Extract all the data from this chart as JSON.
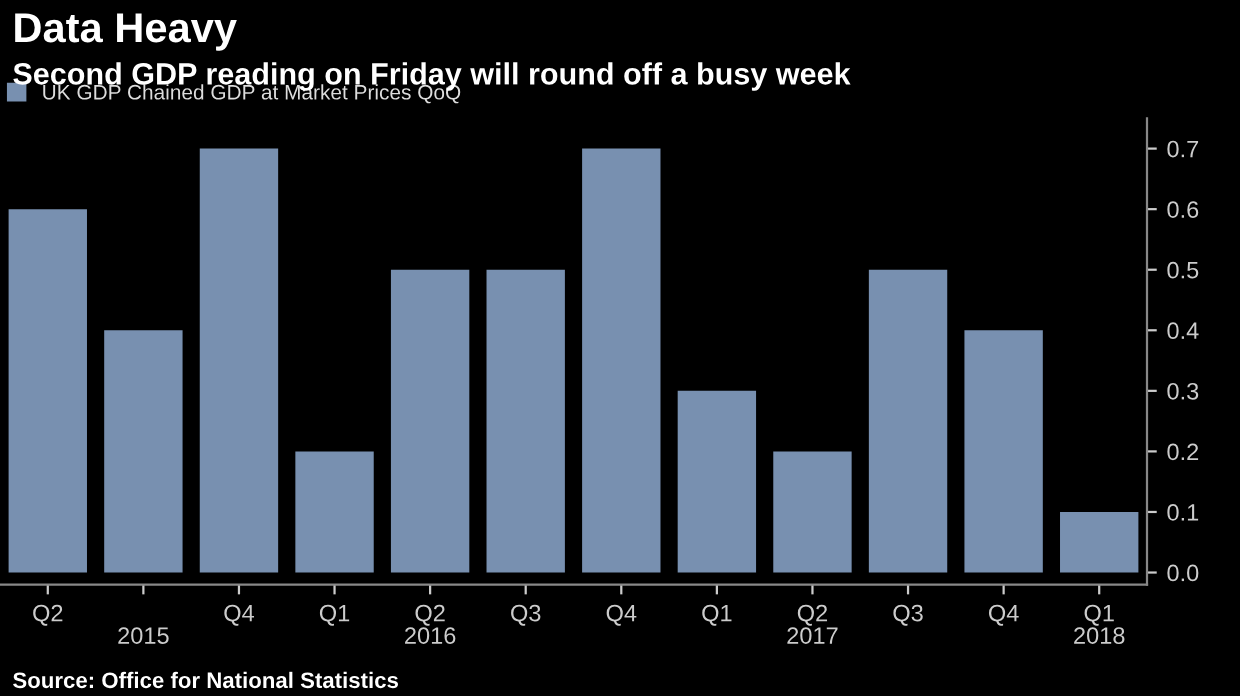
{
  "chart_data": {
    "type": "bar",
    "title": "Data Heavy",
    "subtitle": "Second GDP reading on Friday will round off a busy week",
    "categories": [
      "Q2",
      null,
      "Q4",
      "Q1",
      "Q2",
      "Q3",
      "Q4",
      "Q1",
      "Q2",
      "Q3",
      "Q4",
      "Q1"
    ],
    "series": [
      {
        "name": "UK GDP Chained GDP at Market Prices QoQ",
        "color": "#7890b0",
        "values": [
          0.6,
          0.4,
          0.7,
          0.2,
          0.5,
          0.5,
          0.7,
          0.3,
          0.2,
          0.5,
          0.4,
          0.1
        ]
      }
    ],
    "ylim": [
      -0.02,
      0.75
    ],
    "yticks": [
      {
        "value": 0,
        "label": "0.0"
      },
      0.1,
      0.2,
      0.3,
      0.4,
      0.5,
      0.6,
      0.7
    ],
    "legend": "top left",
    "grid": false,
    "annotations": [
      "2015",
      "2016",
      "2017",
      "2018",
      "Source: Office for National Statistics"
    ]
  }
}
